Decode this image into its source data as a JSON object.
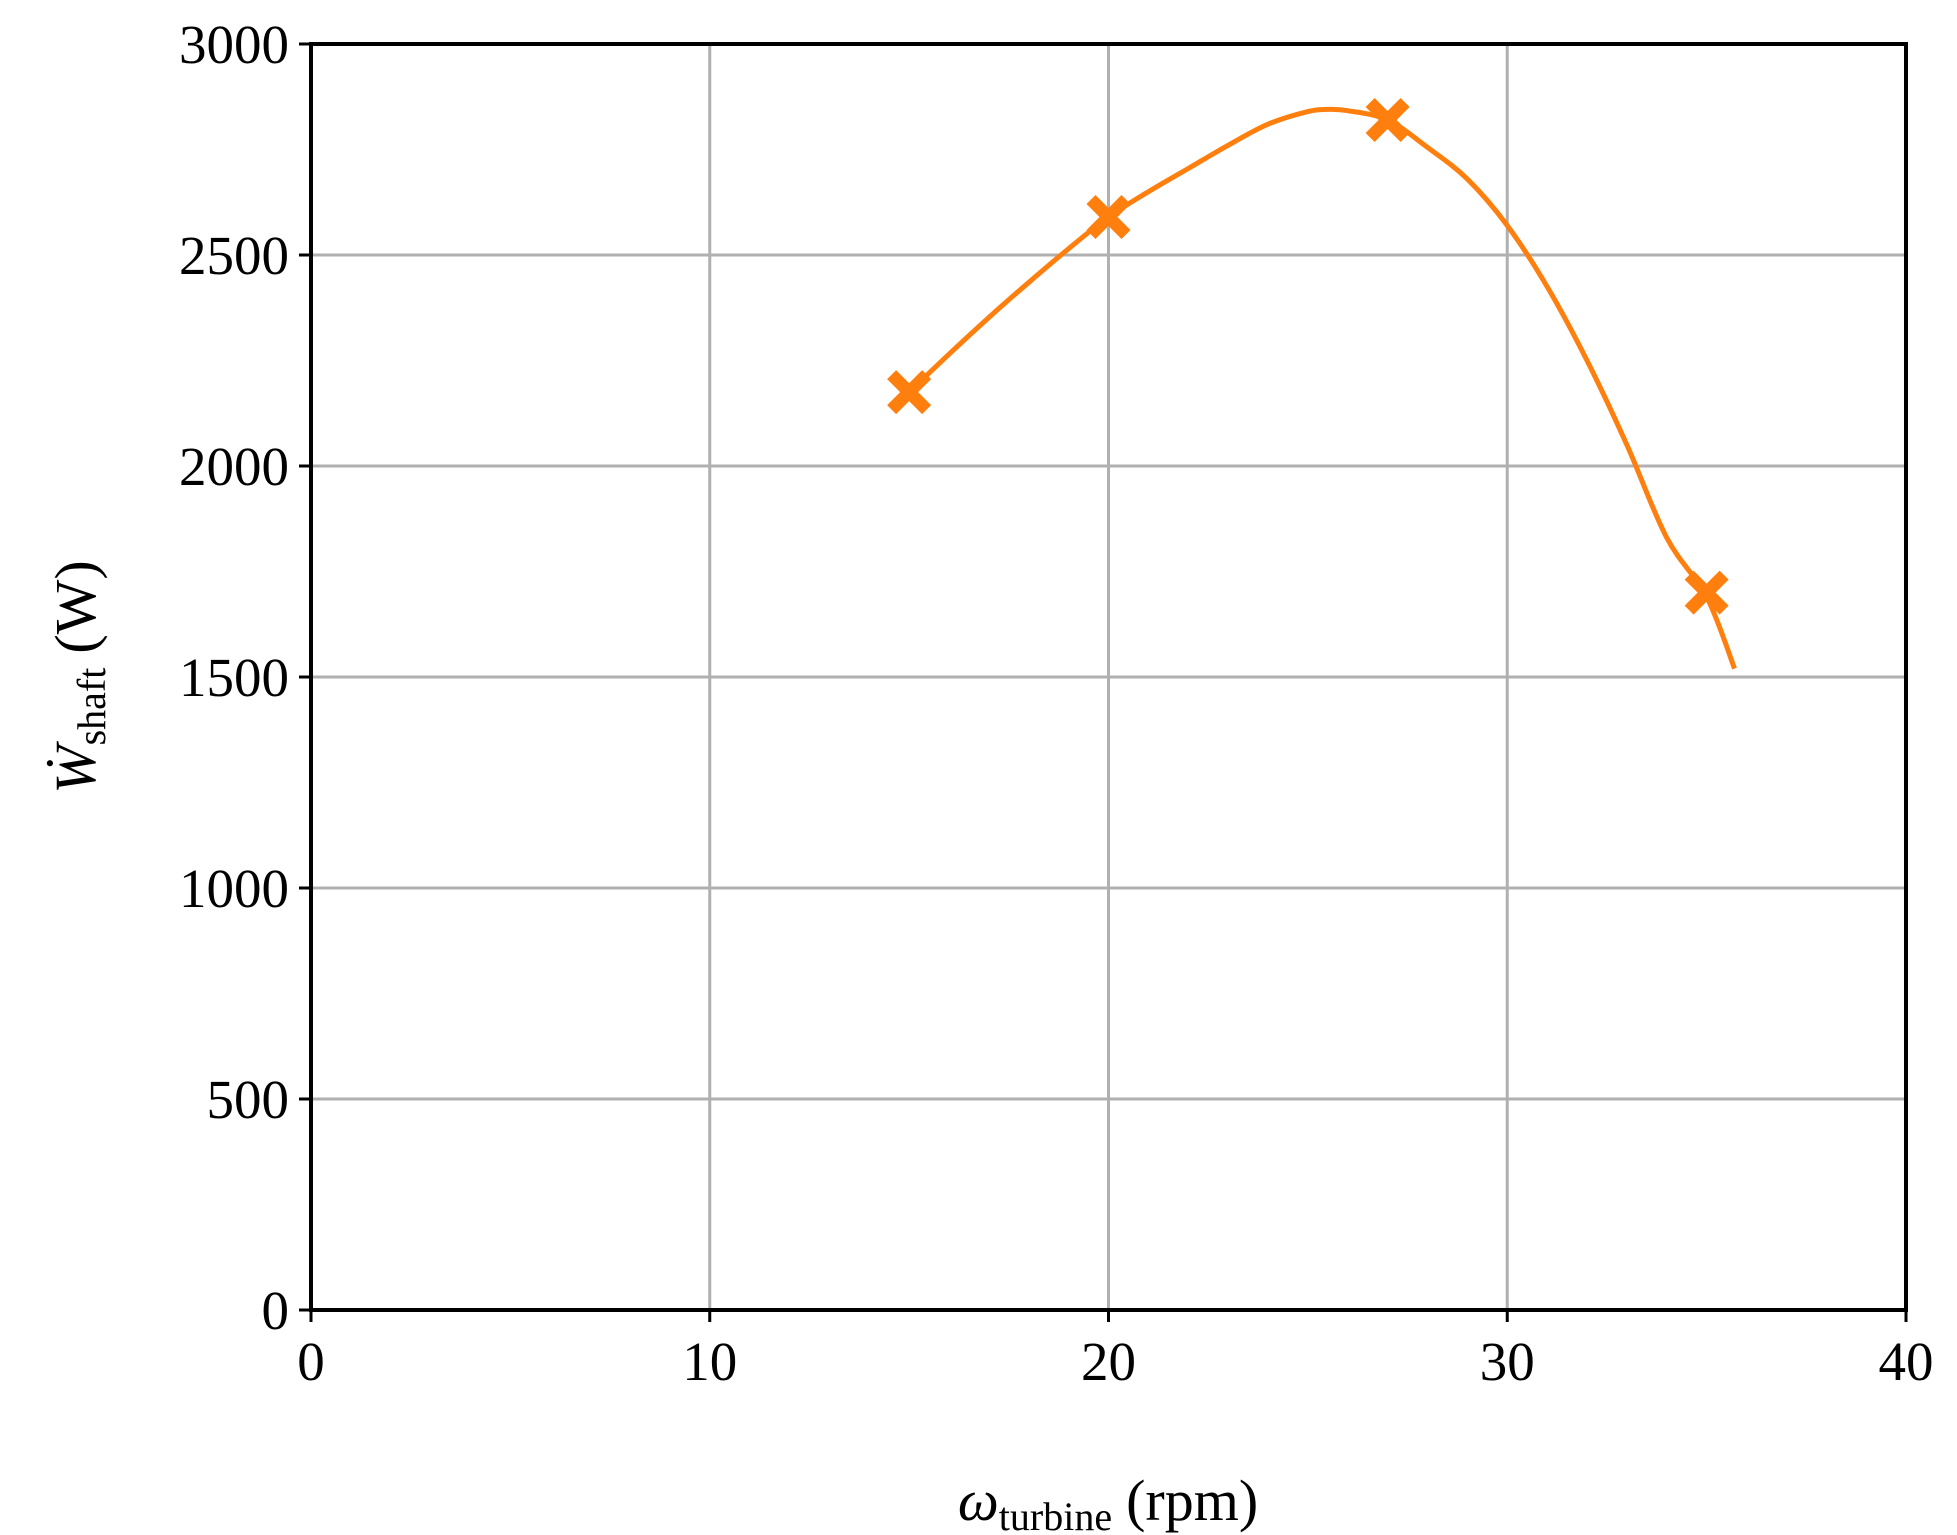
{
  "chart_data": {
    "type": "line",
    "title": "",
    "xlabel": {
      "main": "ω",
      "sub": "turbine",
      "unit": "(rpm)"
    },
    "ylabel": {
      "main": "Ẇ",
      "sub": "shaft",
      "unit": "(W)"
    },
    "xlim": [
      0,
      40
    ],
    "ylim": [
      0,
      3000
    ],
    "xticks": [
      0,
      10,
      20,
      30,
      40
    ],
    "yticks": [
      0,
      500,
      1000,
      1500,
      2000,
      2500,
      3000
    ],
    "xtick_labels": [
      "0",
      "10",
      "20",
      "30",
      "40"
    ],
    "ytick_labels": [
      "0",
      "500",
      "1000",
      "1500",
      "2000",
      "2500",
      "3000"
    ],
    "grid": true,
    "color": "#ff7f0e",
    "markers": {
      "shape": "filled-x",
      "x": [
        15,
        20,
        27,
        35
      ],
      "y": [
        2175,
        2590,
        2820,
        1700
      ]
    },
    "fit_curve": {
      "x": [
        15,
        16,
        17,
        18,
        19,
        20,
        21,
        22,
        23,
        24,
        25,
        25.5,
        26,
        27,
        28,
        29,
        30,
        31,
        32,
        33,
        34,
        35,
        35.7
      ],
      "y": [
        2175,
        2265,
        2352,
        2435,
        2515,
        2590,
        2650,
        2705,
        2760,
        2810,
        2840,
        2845,
        2842,
        2820,
        2755,
        2680,
        2570,
        2425,
        2250,
        2050,
        1830,
        1690,
        1520
      ]
    }
  }
}
